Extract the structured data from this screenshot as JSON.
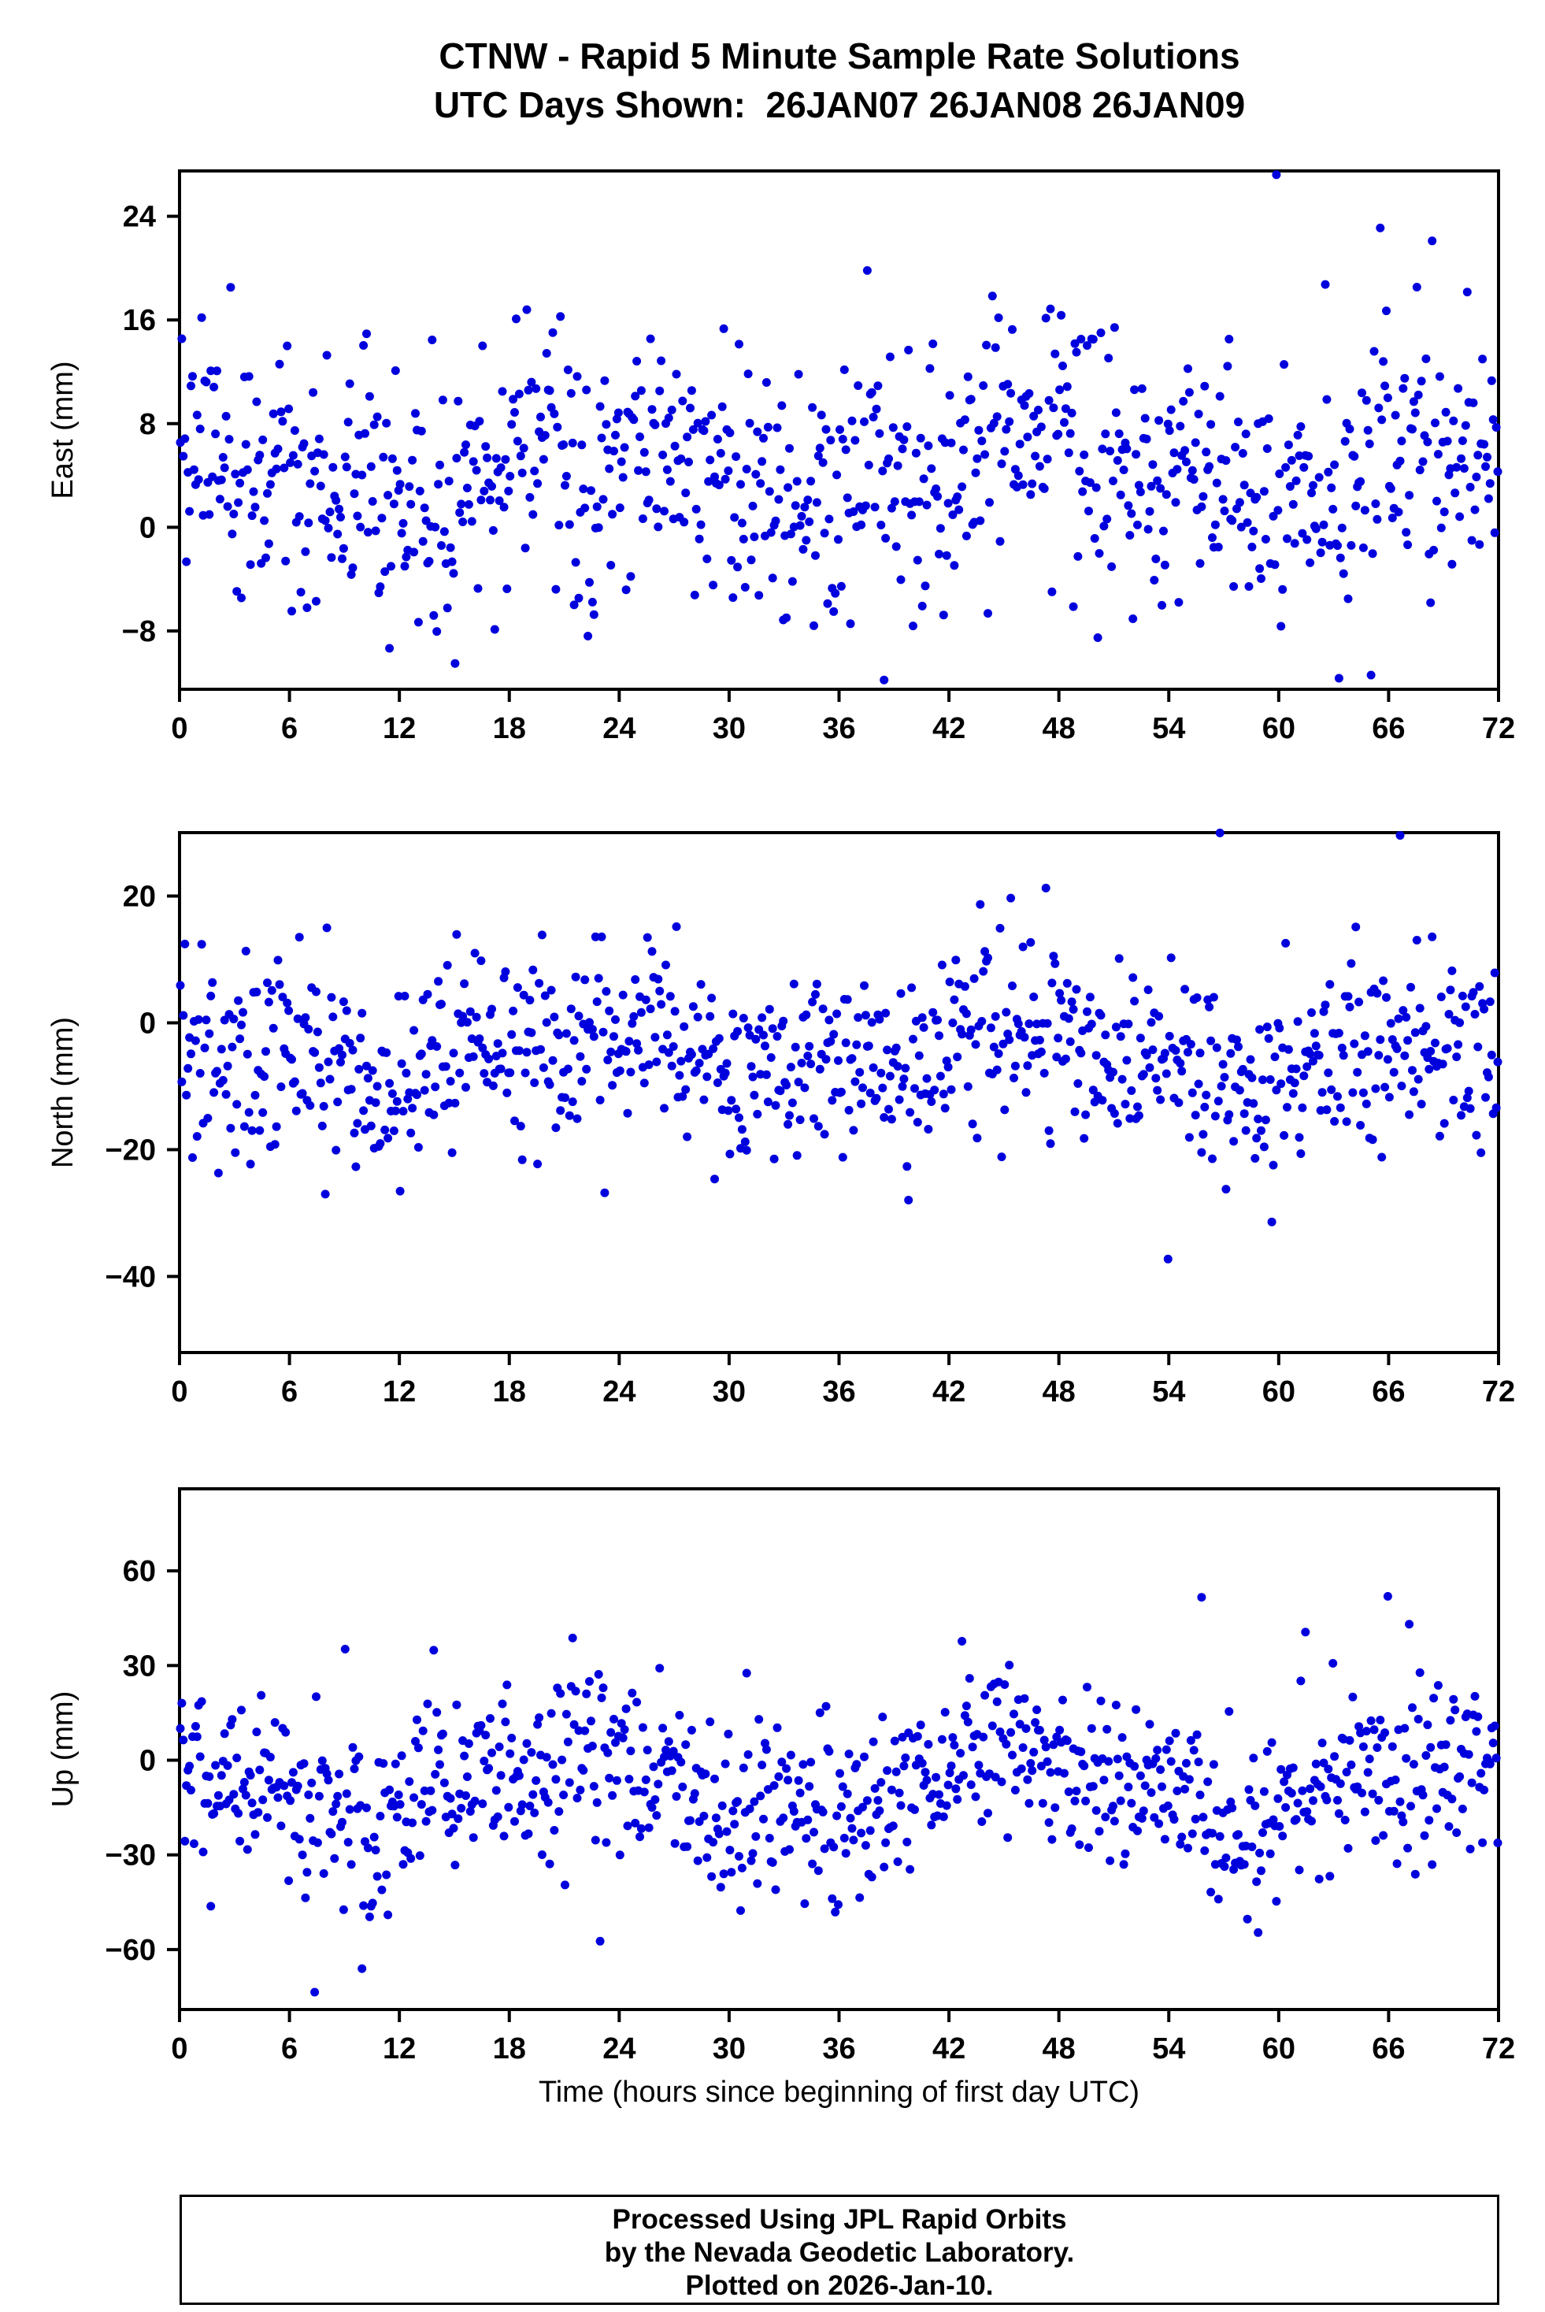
{
  "title": {
    "line1": "CTNW - Rapid 5 Minute Sample Rate Solutions",
    "line2": "UTC Days Shown:  26JAN07 26JAN08 26JAN09"
  },
  "footer": {
    "lines": [
      "Processed Using JPL Rapid Orbits",
      "by the Nevada Geodetic Laboratory.",
      "Plotted on 2026-Jan-10."
    ]
  },
  "chart_data": {
    "type": "scatter",
    "title": "CTNW - Rapid 5 Minute Sample Rate Solutions",
    "subtitle": "UTC Days Shown:  26JAN07 26JAN08 26JAN09",
    "xlabel": "Time (hours since beginning of first day UTC)",
    "x_range": [
      0,
      72
    ],
    "x_ticks": [
      0,
      6,
      12,
      18,
      24,
      30,
      36,
      42,
      48,
      54,
      60,
      66,
      72
    ],
    "sample_interval_hours": 0.0833,
    "samples_per_panel": 864,
    "point_color": "#0000dd",
    "grid": false,
    "legend": "none",
    "panels": [
      {
        "name": "east",
        "ylabel": "East (mm)",
        "ylim": [
          -12.5,
          27.5
        ],
        "yticks": [
          -8,
          0,
          8,
          16,
          24
        ],
        "ytick_labels": [
          "−8",
          "0",
          "8",
          "16",
          "24"
        ],
        "count": 864,
        "mean": 4.5,
        "std": 5.0,
        "wander_amp": 2.5,
        "outlier_prob": 0.006,
        "outlier_scale": 2.3,
        "seed": 101
      },
      {
        "name": "north",
        "ylabel": "North (mm)",
        "ylim": [
          -52,
          30
        ],
        "yticks": [
          -40,
          -20,
          0,
          20
        ],
        "ytick_labels": [
          "−40",
          "−20",
          "0",
          "20"
        ],
        "count": 864,
        "mean": -5,
        "std": 7.5,
        "wander_amp": 3.0,
        "outlier_prob": 0.006,
        "outlier_scale": 2.5,
        "seed": 202
      },
      {
        "name": "up",
        "ylabel": "Up (mm)",
        "ylim": [
          -79,
          86
        ],
        "yticks": [
          -60,
          -30,
          0,
          30,
          60
        ],
        "ytick_labels": [
          "−60",
          "−30",
          "0",
          "30",
          "60"
        ],
        "count": 864,
        "mean": -8,
        "std": 14,
        "wander_amp": 8.0,
        "outlier_prob": 0.005,
        "outlier_scale": 2.5,
        "seed": 303
      }
    ]
  }
}
